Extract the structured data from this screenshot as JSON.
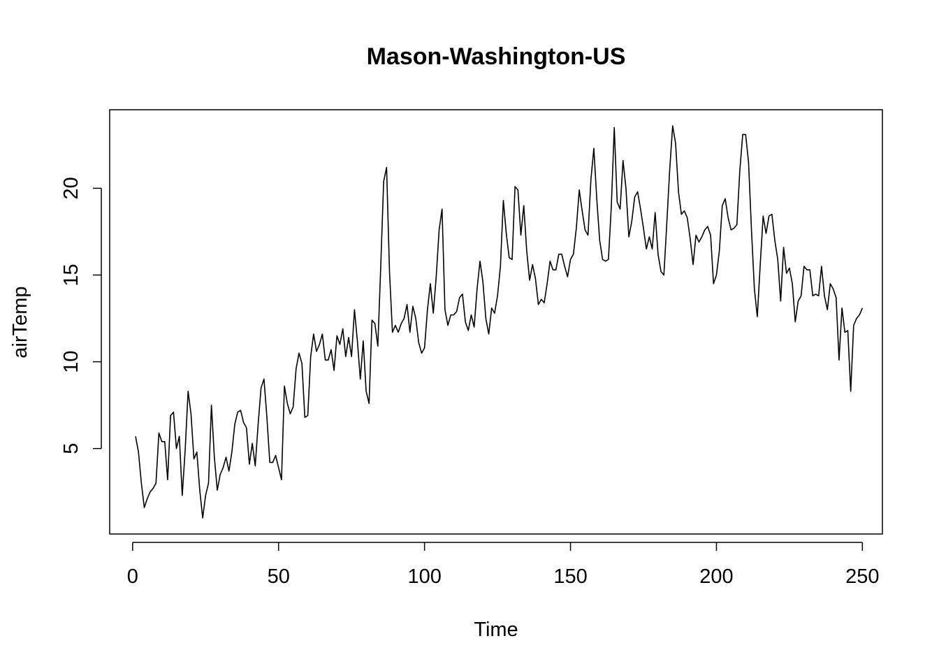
{
  "chart_data": {
    "type": "line",
    "title": "Mason-Washington-US",
    "xlabel": "Time",
    "ylabel": "airTemp",
    "xlim": [
      1,
      248
    ],
    "ylim": [
      1.0,
      23.6
    ],
    "xticks": [
      0,
      50,
      100,
      150,
      200,
      250
    ],
    "xtick_labels": [
      "0",
      "50",
      "100",
      "150",
      "200",
      "250"
    ],
    "yticks": [
      5,
      10,
      15,
      20
    ],
    "ytick_labels": [
      "5",
      "10",
      "15",
      "20"
    ],
    "grid": false,
    "line_color": "#000000",
    "series": [
      {
        "values": [
          5.7,
          4.8,
          3.0,
          1.6,
          2.1,
          2.5,
          2.7,
          3.0,
          5.9,
          5.4,
          5.4,
          3.2,
          6.9,
          7.1,
          5.0,
          5.7,
          2.3,
          4.9,
          8.3,
          7.0,
          4.4,
          4.8,
          2.6,
          1.0,
          2.3,
          3.0,
          7.5,
          4.5,
          2.6,
          3.5,
          3.9,
          4.5,
          3.7,
          4.8,
          6.4,
          7.1,
          7.2,
          6.5,
          6.2,
          4.1,
          5.3,
          4.0,
          6.4,
          8.5,
          9.0,
          6.8,
          4.2,
          4.2,
          4.6,
          3.9,
          3.2,
          8.6,
          7.6,
          7.0,
          7.4,
          9.6,
          10.5,
          9.9,
          6.8,
          6.9,
          10.3,
          11.6,
          10.6,
          11.0,
          11.6,
          10.1,
          10.1,
          10.7,
          9.5,
          11.5,
          11.0,
          11.9,
          10.3,
          11.4,
          10.3,
          13.0,
          11.2,
          9.0,
          11.2,
          8.3,
          7.6,
          12.4,
          12.2,
          10.9,
          15.5,
          20.4,
          21.2,
          15.2,
          11.7,
          12.1,
          11.7,
          12.2,
          12.5,
          13.3,
          11.7,
          13.2,
          12.5,
          11.1,
          10.5,
          10.8,
          13.0,
          14.5,
          12.8,
          14.9,
          17.6,
          18.8,
          13.0,
          12.1,
          12.7,
          12.7,
          12.9,
          13.7,
          13.9,
          12.3,
          11.8,
          12.7,
          12.0,
          14.2,
          15.8,
          14.6,
          12.5,
          11.6,
          13.1,
          12.8,
          13.8,
          15.5,
          19.3,
          17.4,
          16.0,
          15.9,
          20.1,
          19.9,
          17.3,
          19.0,
          16.4,
          14.7,
          15.6,
          14.8,
          13.3,
          13.6,
          13.4,
          14.5,
          15.8,
          15.3,
          15.3,
          16.2,
          16.2,
          15.5,
          14.9,
          15.9,
          16.2,
          17.7,
          19.9,
          18.7,
          17.6,
          17.3,
          20.5,
          22.3,
          19.4,
          17.0,
          15.9,
          15.8,
          15.9,
          19.0,
          23.5,
          19.2,
          18.8,
          21.6,
          20.0,
          17.2,
          18.1,
          19.5,
          19.8,
          18.8,
          17.7,
          16.5,
          17.2,
          16.5,
          18.6,
          16.2,
          15.2,
          15.0,
          18.0,
          21.1,
          23.6,
          22.6,
          19.8,
          18.5,
          18.7,
          18.3,
          17.1,
          15.6,
          17.3,
          16.9,
          17.2,
          17.6,
          17.8,
          17.3,
          14.5,
          15.0,
          16.4,
          19.0,
          19.4,
          18.3,
          17.6,
          17.7,
          17.9,
          21.0,
          23.1,
          23.1,
          21.5,
          17.6,
          14.2,
          12.6,
          15.6,
          18.4,
          17.4,
          18.4,
          18.5,
          17.0,
          15.9,
          13.5,
          16.6,
          15.1,
          15.4,
          14.5,
          12.3,
          13.5,
          13.8,
          15.5,
          15.3,
          15.3,
          13.8,
          13.9,
          13.8,
          15.5,
          13.8,
          13.0,
          14.5,
          14.2,
          13.7,
          10.1,
          13.1,
          11.7,
          11.8,
          8.3,
          12.1,
          12.5,
          12.7,
          13.1
        ]
      }
    ]
  }
}
